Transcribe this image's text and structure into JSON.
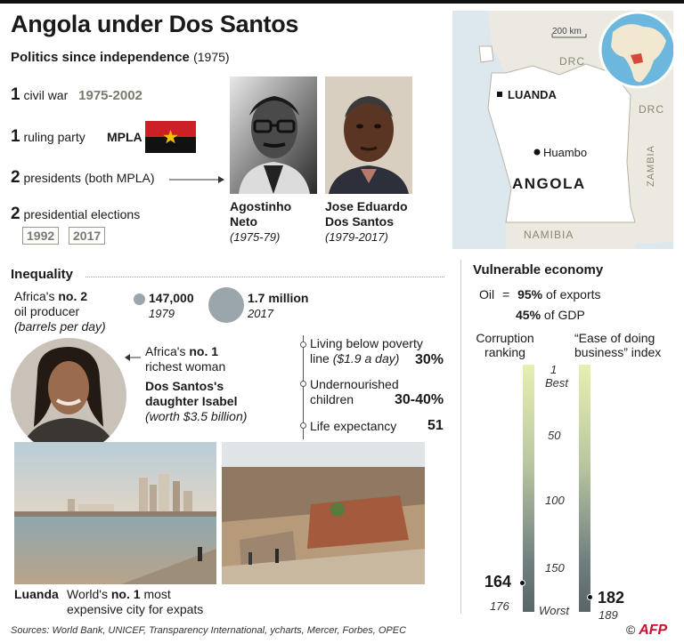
{
  "header": {
    "title": "Angola under Dos Santos",
    "subtitle": "Politics since independence",
    "subtitle_years": "(1975)"
  },
  "politics": {
    "civil_war": {
      "num": "1",
      "label": "civil war",
      "years": "1975-2002"
    },
    "ruling_party": {
      "num": "1",
      "label": "ruling party",
      "party": "MPLA"
    },
    "presidents": {
      "num": "2",
      "label": "presidents (both MPLA)"
    },
    "elections": {
      "num": "2",
      "label": "presidential elections",
      "years": [
        "1992",
        "2017"
      ]
    }
  },
  "photos": [
    {
      "name_line1": "Agostinho",
      "name_line2": "Neto",
      "years": "(1975-79)"
    },
    {
      "name_line1": "Jose Eduardo",
      "name_line2": "Dos Santos",
      "years": "(1979-2017)"
    }
  ],
  "map": {
    "scale": "200 km",
    "labels": {
      "drc_top": "DRC",
      "drc_right": "DRC",
      "zambia": "ZAMBIA",
      "namibia": "NAMIBIA",
      "angola": "ANGOLA",
      "luanda": "LUANDA",
      "huambo": "Huambo"
    },
    "colors": {
      "sea": "#dde8ee",
      "land": "#ffffff",
      "neighbor": "#ece9e1",
      "globe_sea": "#6bb7dd",
      "globe_land": "#f2e7cf",
      "angola_globe": "#d44a3a"
    }
  },
  "inequality": {
    "title": "Inequality",
    "oil_line1": "Africa's",
    "oil_rank": "no. 2",
    "oil_line2": "oil producer",
    "oil_line3": "(barrels per day)",
    "v1979": "147,000",
    "y1979": "1979",
    "v2017": "1.7 million",
    "y2017": "2017",
    "rich_line1": "Africa's",
    "rich_rank": "no. 1",
    "rich_line2": "richest woman",
    "isabel_line1": "Dos Santos's",
    "isabel_line2": "daughter Isabel",
    "isabel_line3": "(worth $3.5 billion)",
    "poverty": {
      "label1": "Living below poverty",
      "label2": "line",
      "label2_ital": "($1.9 a day)",
      "value": "30%"
    },
    "nourish": {
      "label1": "Undernourished",
      "label2": "children",
      "value": "30-40%"
    },
    "life": {
      "label": "Life expectancy",
      "value": "51"
    },
    "luanda_label": "Luanda",
    "luanda_caption1": "World's",
    "luanda_rank": "no. 1",
    "luanda_caption2": "most",
    "luanda_caption3": "expensive city for expats"
  },
  "economy": {
    "title": "Vulnerable economy",
    "oil_label": "Oil",
    "equals": "=",
    "exports_pct": "95%",
    "exports_label": "of exports",
    "gdp_pct": "45%",
    "gdp_label": "of GDP",
    "corruption_label1": "Corruption",
    "corruption_label2": "ranking",
    "business_label1": "“Ease of doing",
    "business_label2": "business” index",
    "scale_best_num": "1",
    "scale_best": "Best",
    "ticks": [
      "50",
      "100",
      "150"
    ],
    "scale_worst": "Worst",
    "corruption_rank": "164",
    "corruption_total": "176",
    "business_rank": "182",
    "business_total": "189"
  },
  "footer": {
    "sources": "Sources: World Bank, UNICEF, Transparency International, ycharts, Mercer, Forbes, OPEC",
    "copyright": "©",
    "brand": "AFP"
  }
}
